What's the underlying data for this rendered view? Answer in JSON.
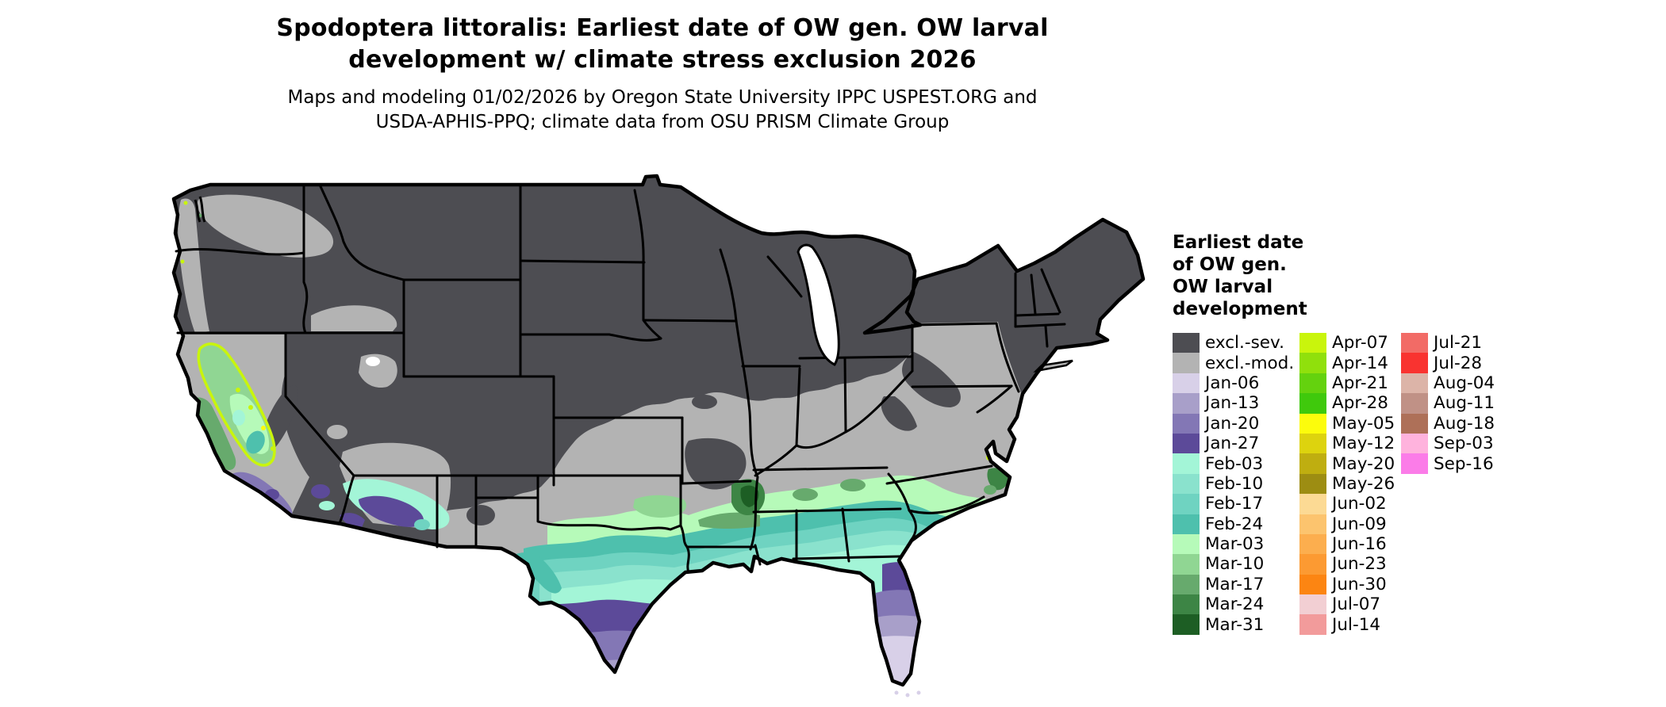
{
  "title": {
    "line1": "Spodoptera littoralis: Earliest date of OW gen. OW larval",
    "line2": "development w/ climate stress exclusion 2026"
  },
  "subtitle": {
    "line1": "Maps and modeling 01/02/2026 by Oregon State University IPPC USPEST.ORG and",
    "line2": "USDA-APHIS-PPQ; climate data from OSU PRISM Climate Group"
  },
  "legend": {
    "title_lines": [
      "Earliest date",
      "of OW gen.",
      "OW larval",
      "development"
    ],
    "columns": [
      {
        "entries": [
          {
            "label": "excl.-sev.",
            "color": "#4d4d52"
          },
          {
            "label": "excl.-mod.",
            "color": "#b3b3b3"
          },
          {
            "label": "Jan-06",
            "color": "#d8d0e8"
          },
          {
            "label": "Jan-13",
            "color": "#a89fc9"
          },
          {
            "label": "Jan-20",
            "color": "#8377b5"
          },
          {
            "label": "Jan-27",
            "color": "#5c4a99"
          },
          {
            "label": "Feb-03",
            "color": "#a3f5d7"
          },
          {
            "label": "Feb-10",
            "color": "#8ae2cd"
          },
          {
            "label": "Feb-17",
            "color": "#6fd3c1"
          },
          {
            "label": "Feb-24",
            "color": "#4ec0ad"
          },
          {
            "label": "Mar-03",
            "color": "#b6fab9"
          },
          {
            "label": "Mar-10",
            "color": "#90d693"
          },
          {
            "label": "Mar-17",
            "color": "#67aa6d"
          },
          {
            "label": "Mar-24",
            "color": "#3d8545"
          },
          {
            "label": "Mar-31",
            "color": "#1d5e24"
          }
        ]
      },
      {
        "entries": [
          {
            "label": "Apr-07",
            "color": "#c9f50c"
          },
          {
            "label": "Apr-14",
            "color": "#90e00c"
          },
          {
            "label": "Apr-21",
            "color": "#64d20e"
          },
          {
            "label": "Apr-28",
            "color": "#3fc90c"
          },
          {
            "label": "May-05",
            "color": "#fcfc0c"
          },
          {
            "label": "May-12",
            "color": "#ddd30e"
          },
          {
            "label": "May-20",
            "color": "#bfae10"
          },
          {
            "label": "May-26",
            "color": "#9d8d12"
          },
          {
            "label": "Jun-02",
            "color": "#fcda94"
          },
          {
            "label": "Jun-09",
            "color": "#fcc46e"
          },
          {
            "label": "Jun-16",
            "color": "#fcae4e"
          },
          {
            "label": "Jun-23",
            "color": "#fc9a32"
          },
          {
            "label": "Jun-30",
            "color": "#fc8512"
          },
          {
            "label": "Jul-07",
            "color": "#f2cfd3"
          },
          {
            "label": "Jul-14",
            "color": "#f29b9b"
          }
        ]
      },
      {
        "entries": [
          {
            "label": "Jul-21",
            "color": "#f26b66"
          },
          {
            "label": "Jul-28",
            "color": "#f93330"
          },
          {
            "label": "Aug-04",
            "color": "#dcb4a8"
          },
          {
            "label": "Aug-11",
            "color": "#c09186"
          },
          {
            "label": "Aug-18",
            "color": "#ae7058"
          },
          {
            "label": "Sep-03",
            "color": "#ffb3dd"
          },
          {
            "label": "Sep-16",
            "color": "#fb7ce8"
          }
        ]
      }
    ]
  }
}
